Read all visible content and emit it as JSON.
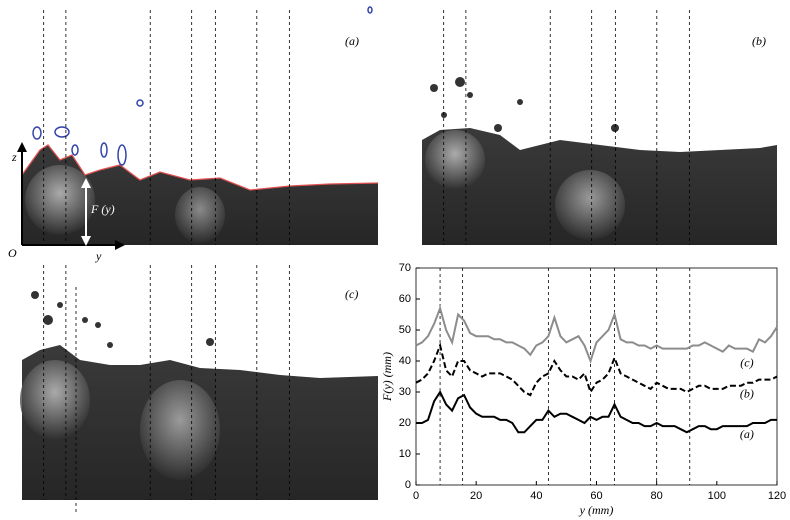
{
  "panels": [
    {
      "label": "(a)",
      "axis_z": "z",
      "axis_y": "y",
      "origin": "O",
      "height_label": "F (y)"
    },
    {
      "label": "(b)"
    },
    {
      "label": "(c)"
    }
  ],
  "chart_data": {
    "type": "line",
    "xlabel": "y (mm)",
    "ylabel": "F(y) (mm)",
    "xlim": [
      0,
      120
    ],
    "ylim": [
      0,
      70
    ],
    "xticks": [
      0,
      20,
      40,
      60,
      80,
      100,
      120
    ],
    "yticks": [
      0,
      10,
      20,
      30,
      40,
      50,
      60,
      70
    ],
    "vlines": [
      8,
      15.5,
      44,
      58,
      66,
      80,
      91
    ],
    "x": [
      0,
      2,
      4,
      6,
      8,
      10,
      12,
      14,
      16,
      18,
      20,
      22,
      24,
      26,
      28,
      30,
      32,
      34,
      36,
      38,
      40,
      42,
      44,
      46,
      48,
      50,
      52,
      54,
      56,
      58,
      60,
      62,
      64,
      66,
      68,
      70,
      72,
      74,
      76,
      78,
      80,
      82,
      84,
      86,
      88,
      90,
      92,
      94,
      96,
      98,
      100,
      102,
      104,
      106,
      108,
      110,
      112,
      114,
      116,
      118,
      120
    ],
    "series": [
      {
        "name": "(a)",
        "color": "#000000",
        "dash": false,
        "values": [
          20,
          20,
          21,
          27,
          30,
          26,
          24,
          28,
          29,
          25,
          23,
          22,
          22,
          22,
          21,
          21,
          20,
          17,
          17,
          19,
          21,
          21,
          24,
          22,
          23,
          23,
          22,
          21,
          20,
          22,
          21,
          22,
          22,
          26,
          22,
          21,
          20,
          20,
          19,
          19,
          20,
          19,
          19,
          19,
          18,
          17,
          18,
          19,
          19,
          18,
          18,
          19,
          19,
          19,
          19,
          19,
          20,
          20,
          20,
          21,
          21
        ]
      },
      {
        "name": "(b)",
        "color": "#000000",
        "dash": true,
        "values": [
          33,
          34,
          36,
          40,
          45,
          37,
          35,
          40,
          40,
          37,
          36,
          35,
          36,
          36,
          36,
          35,
          34,
          32,
          30,
          29,
          33,
          35,
          36,
          40,
          37,
          35,
          35,
          34,
          36,
          30,
          33,
          34,
          36,
          41,
          36,
          35,
          34,
          33,
          32,
          31,
          33,
          32,
          31,
          31,
          31,
          30,
          31,
          32,
          32,
          31,
          31,
          31,
          32,
          32,
          32,
          33,
          33,
          34,
          34,
          34,
          35
        ]
      },
      {
        "name": "(c)",
        "color": "#8c8c8c",
        "dash": false,
        "values": [
          45,
          46,
          48,
          52,
          57,
          50,
          46,
          55,
          53,
          49,
          48,
          48,
          48,
          47,
          47,
          46,
          46,
          45,
          44,
          42,
          45,
          46,
          48,
          54,
          48,
          46,
          47,
          48,
          45,
          40,
          46,
          48,
          50,
          55,
          47,
          46,
          46,
          45,
          45,
          44,
          45,
          44,
          44,
          44,
          44,
          44,
          45,
          45,
          46,
          45,
          44,
          43,
          45,
          44,
          44,
          44,
          43,
          47,
          46,
          48,
          51
        ]
      }
    ]
  }
}
